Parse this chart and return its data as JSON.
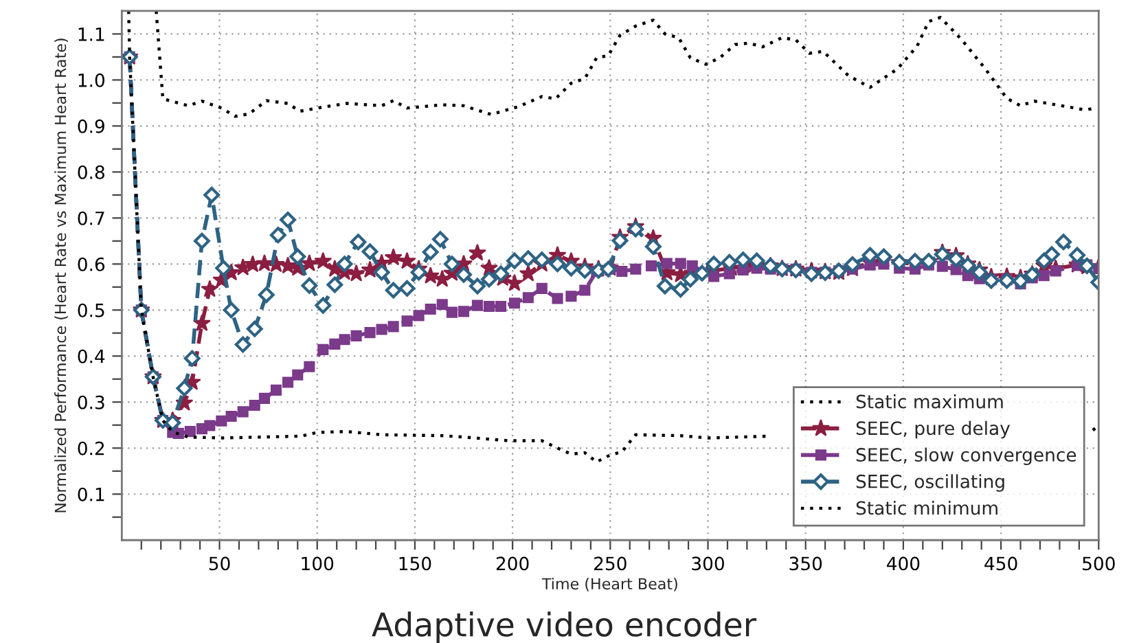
{
  "chart_data": {
    "type": "line",
    "title": "Adaptive video encoder",
    "xlabel": "Time (Heart Beat)",
    "ylabel": "Normalized Performance (Heart Rate vs Maximum Heart Rate)",
    "xlim": [
      0,
      500
    ],
    "ylim": [
      0,
      1.15
    ],
    "xticks": [
      {
        "value": 10,
        "label": null
      },
      {
        "value": 20,
        "label": null
      },
      {
        "value": 30,
        "label": null
      },
      {
        "value": 40,
        "label": null
      },
      50,
      {
        "value": 60,
        "label": null
      },
      {
        "value": 70,
        "label": null
      },
      {
        "value": 80,
        "label": null
      },
      {
        "value": 90,
        "label": null
      },
      100,
      {
        "value": 110,
        "label": null
      },
      {
        "value": 120,
        "label": null
      },
      {
        "value": 130,
        "label": null
      },
      {
        "value": 140,
        "label": null
      },
      150,
      {
        "value": 160,
        "label": null
      },
      {
        "value": 170,
        "label": null
      },
      {
        "value": 180,
        "label": null
      },
      {
        "value": 190,
        "label": null
      },
      200,
      {
        "value": 210,
        "label": null
      },
      {
        "value": 220,
        "label": null
      },
      {
        "value": 230,
        "label": null
      },
      {
        "value": 240,
        "label": null
      },
      250,
      {
        "value": 260,
        "label": null
      },
      {
        "value": 270,
        "label": null
      },
      {
        "value": 280,
        "label": null
      },
      {
        "value": 290,
        "label": null
      },
      300,
      {
        "value": 310,
        "label": null
      },
      {
        "value": 320,
        "label": null
      },
      {
        "value": 330,
        "label": null
      },
      {
        "value": 340,
        "label": null
      },
      350,
      {
        "value": 360,
        "label": null
      },
      {
        "value": 370,
        "label": null
      },
      {
        "value": 380,
        "label": null
      },
      {
        "value": 390,
        "label": null
      },
      400,
      {
        "value": 410,
        "label": null
      },
      {
        "value": 420,
        "label": null
      },
      {
        "value": 430,
        "label": null
      },
      {
        "value": 440,
        "label": null
      },
      450,
      {
        "value": 460,
        "label": null
      },
      {
        "value": 470,
        "label": null
      },
      {
        "value": 480,
        "label": null
      },
      {
        "value": 490,
        "label": null
      },
      500
    ],
    "yticks": [
      {
        "value": 0.05,
        "label": null
      },
      0.1,
      {
        "value": 0.15,
        "label": null
      },
      0.2,
      {
        "value": 0.25,
        "label": null
      },
      0.3,
      {
        "value": 0.35,
        "label": null
      },
      0.4,
      {
        "value": 0.45,
        "label": null
      },
      0.5,
      {
        "value": 0.55,
        "label": null
      },
      0.6,
      {
        "value": 0.65,
        "label": null
      },
      0.7,
      {
        "value": 0.75,
        "label": null
      },
      0.8,
      {
        "value": 0.85,
        "label": null
      },
      0.9,
      {
        "value": 0.95,
        "label": null
      },
      {
        "value": 1.0,
        "label": "1.0"
      },
      {
        "value": 1.05,
        "label": null
      },
      1.1
    ],
    "grid": true,
    "legend": "bottom right",
    "series": [
      {
        "name": "Static maximum",
        "color": "#000000",
        "line_style": "dotted",
        "marker": "none",
        "x": [
          17.6,
          21,
          34,
          41,
          51,
          58,
          65,
          74,
          85,
          91,
          103,
          115,
          133,
          139,
          146,
          164,
          175,
          189,
          203,
          215,
          222,
          230,
          237,
          243,
          249,
          255,
          263,
          272,
          278,
          285,
          291,
          299,
          306,
          314,
          321,
          328,
          338,
          345,
          352,
          359,
          372,
          383,
          397,
          407,
          413,
          419,
          430,
          442,
          453,
          460,
          467,
          481,
          493,
          499
        ],
        "values": [
          1.15,
          0.959,
          0.944,
          0.954,
          0.939,
          0.921,
          0.926,
          0.955,
          0.949,
          0.932,
          0.941,
          0.949,
          0.944,
          0.955,
          0.939,
          0.946,
          0.944,
          0.925,
          0.942,
          0.964,
          0.959,
          0.993,
          1.003,
          1.048,
          1.053,
          1.097,
          1.117,
          1.13,
          1.1,
          1.092,
          1.048,
          1.034,
          1.048,
          1.077,
          1.08,
          1.072,
          1.092,
          1.087,
          1.058,
          1.062,
          1.009,
          0.984,
          1.024,
          1.073,
          1.127,
          1.136,
          1.087,
          1.024,
          0.96,
          0.944,
          0.954,
          0.944,
          0.935,
          0.939
        ]
      },
      {
        "name": "SEEC, pure delay",
        "color": "#8b1e41",
        "line_style": "dashed",
        "marker": "star",
        "x": [
          4,
          10,
          16,
          21,
          26,
          32,
          36,
          41,
          45,
          51,
          56,
          62,
          67,
          73,
          79,
          85,
          90,
          96,
          103,
          109,
          114,
          120,
          127,
          133,
          139,
          146,
          152,
          158,
          164,
          169,
          175,
          182,
          188,
          195,
          201,
          208,
          215,
          223,
          230,
          237,
          244,
          250,
          255,
          263,
          272,
          279,
          286,
          292,
          300,
          312,
          323,
          332,
          338,
          345,
          353,
          360,
          367,
          374,
          383,
          390,
          398,
          406,
          413,
          420,
          427,
          433,
          439,
          445,
          453,
          460,
          466,
          472,
          478,
          489,
          494,
          500
        ],
        "values": [
          1.05,
          0.5,
          0.355,
          0.26,
          0.26,
          0.298,
          0.343,
          0.471,
          0.545,
          0.565,
          0.581,
          0.592,
          0.599,
          0.601,
          0.599,
          0.596,
          0.591,
          0.601,
          0.606,
          0.589,
          0.582,
          0.579,
          0.587,
          0.602,
          0.614,
          0.606,
          0.589,
          0.574,
          0.567,
          0.58,
          0.6,
          0.624,
          0.591,
          0.569,
          0.558,
          0.579,
          0.6,
          0.619,
          0.606,
          0.594,
          0.589,
          0.591,
          0.658,
          0.681,
          0.656,
          0.581,
          0.577,
          0.58,
          0.584,
          0.591,
          0.596,
          0.596,
          0.59,
          0.589,
          0.585,
          0.583,
          0.582,
          0.59,
          0.603,
          0.61,
          0.603,
          0.6,
          0.605,
          0.625,
          0.618,
          0.6,
          0.587,
          0.572,
          0.573,
          0.57,
          0.578,
          0.596,
          0.59,
          0.598,
          0.594,
          0.594
        ]
      },
      {
        "name": "SEEC, slow convergence",
        "color": "#7b3a8a",
        "line_style": "dashed",
        "marker": "square",
        "x": [
          4,
          10,
          16,
          21,
          26,
          29,
          35,
          41,
          45,
          51,
          56,
          62,
          68,
          73,
          79,
          85,
          90,
          96,
          103,
          109,
          114,
          120,
          127,
          133,
          139,
          146,
          152,
          158,
          164,
          169,
          175,
          182,
          188,
          194,
          201,
          208,
          215,
          223,
          230,
          237,
          243,
          250,
          256,
          263,
          271,
          279,
          286,
          292,
          303,
          311,
          318,
          325,
          332,
          338,
          345,
          353,
          360,
          367,
          374,
          383,
          390,
          398,
          406,
          413,
          420,
          427,
          433,
          439,
          445,
          453,
          460,
          466,
          472,
          478,
          489,
          494,
          500
        ],
        "values": [
          1.05,
          0.5,
          0.355,
          0.26,
          0.234,
          0.232,
          0.236,
          0.242,
          0.249,
          0.259,
          0.269,
          0.279,
          0.293,
          0.308,
          0.326,
          0.343,
          0.359,
          0.377,
          0.414,
          0.426,
          0.436,
          0.444,
          0.451,
          0.458,
          0.464,
          0.476,
          0.488,
          0.502,
          0.512,
          0.495,
          0.497,
          0.51,
          0.508,
          0.508,
          0.515,
          0.527,
          0.547,
          0.525,
          0.53,
          0.543,
          0.584,
          0.589,
          0.584,
          0.589,
          0.596,
          0.601,
          0.601,
          0.596,
          0.573,
          0.579,
          0.587,
          0.591,
          0.589,
          0.589,
          0.589,
          0.582,
          0.582,
          0.585,
          0.589,
          0.598,
          0.6,
          0.591,
          0.589,
          0.598,
          0.595,
          0.588,
          0.575,
          0.568,
          0.566,
          0.566,
          0.557,
          0.57,
          0.575,
          0.585,
          0.597,
          0.598,
          0.59
        ]
      },
      {
        "name": "SEEC, oscillating",
        "color": "#2e6384",
        "line_style": "dashed",
        "marker": "diamond",
        "x": [
          4,
          10,
          16,
          21,
          26,
          32,
          36,
          41,
          46,
          52,
          56,
          62,
          68,
          74,
          80,
          85,
          90,
          96,
          103,
          109,
          114,
          121,
          127,
          133,
          139,
          146,
          152,
          158,
          163,
          169,
          175,
          182,
          188,
          194,
          201,
          208,
          215,
          223,
          230,
          237,
          244,
          249,
          255,
          263,
          272,
          278,
          286,
          291,
          297,
          303,
          311,
          318,
          325,
          332,
          338,
          345,
          353,
          360,
          367,
          374,
          383,
          390,
          398,
          406,
          413,
          420,
          427,
          433,
          439,
          445,
          453,
          460,
          466,
          472,
          476,
          482,
          489,
          494,
          500
        ],
        "values": [
          1.05,
          0.5,
          0.355,
          0.26,
          0.255,
          0.33,
          0.395,
          0.65,
          0.75,
          0.591,
          0.5,
          0.425,
          0.459,
          0.533,
          0.663,
          0.696,
          0.616,
          0.553,
          0.51,
          0.555,
          0.6,
          0.648,
          0.627,
          0.582,
          0.543,
          0.547,
          0.582,
          0.626,
          0.654,
          0.6,
          0.577,
          0.552,
          0.567,
          0.579,
          0.607,
          0.612,
          0.609,
          0.6,
          0.591,
          0.586,
          0.586,
          0.589,
          0.651,
          0.676,
          0.638,
          0.552,
          0.545,
          0.567,
          0.58,
          0.6,
          0.604,
          0.609,
          0.607,
          0.596,
          0.589,
          0.587,
          0.579,
          0.581,
          0.585,
          0.599,
          0.619,
          0.616,
          0.604,
          0.606,
          0.606,
          0.621,
          0.611,
          0.597,
          0.582,
          0.564,
          0.564,
          0.563,
          0.577,
          0.607,
          0.621,
          0.648,
          0.619,
          0.596,
          0.56
        ]
      },
      {
        "name": "Static minimum",
        "color": "#000000",
        "line_style": "dotted",
        "marker": "none",
        "x": [
          3.5,
          4,
          10,
          16,
          21,
          26,
          34,
          51,
          72,
          92,
          100,
          115,
          133,
          164,
          175,
          198,
          215,
          223,
          230,
          237,
          243,
          250,
          256,
          263,
          286,
          300,
          332,
          340,
          497,
          500
        ],
        "values": [
          1.15,
          1.05,
          0.5,
          0.355,
          0.26,
          0.235,
          0.224,
          0.222,
          0.224,
          0.226,
          0.234,
          0.236,
          0.229,
          0.227,
          0.224,
          0.216,
          0.216,
          0.2,
          0.187,
          0.19,
          0.17,
          0.185,
          0.192,
          0.229,
          0.227,
          0.222,
          0.226,
          null,
          0.239,
          0.249
        ]
      }
    ]
  }
}
